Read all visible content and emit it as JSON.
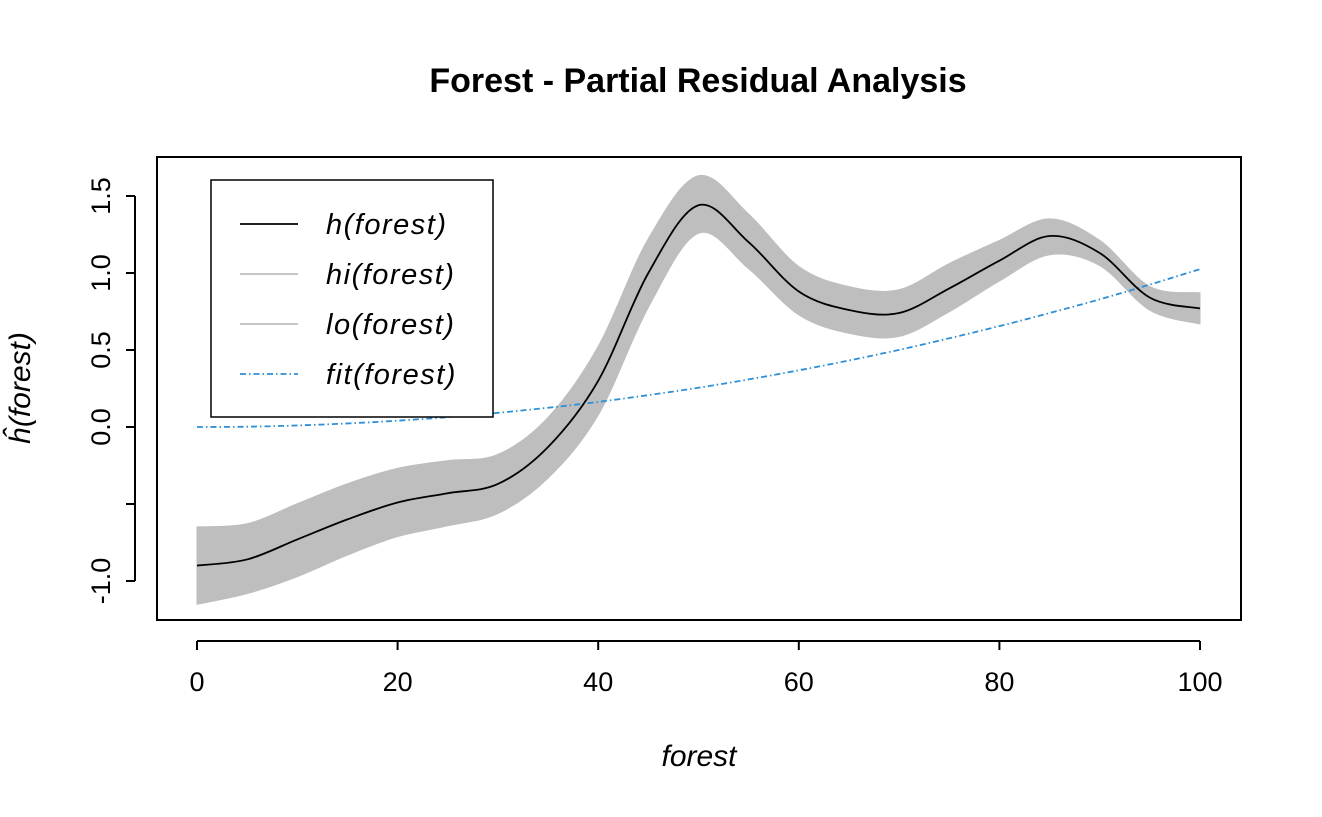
{
  "chart_data": {
    "type": "line",
    "title": "Forest - Partial Residual Analysis",
    "xlabel": "forest",
    "ylabel": "ĥ(forest)",
    "xlim": [
      0,
      100
    ],
    "ylim": [
      -1.25,
      1.75
    ],
    "x_ticks": [
      {
        "value": 0,
        "label": "0"
      },
      {
        "value": 20,
        "label": "20"
      },
      {
        "value": 40,
        "label": "40"
      },
      {
        "value": 60,
        "label": "60"
      },
      {
        "value": 80,
        "label": "80"
      },
      {
        "value": 100,
        "label": "100"
      }
    ],
    "y_ticks": [
      {
        "value": -1.0,
        "label": "-1.0"
      },
      {
        "value": -0.5,
        "label": ""
      },
      {
        "value": 0.0,
        "label": "0.0"
      },
      {
        "value": 0.5,
        "label": "0.5"
      },
      {
        "value": 1.0,
        "label": "1.0"
      },
      {
        "value": 1.5,
        "label": "1.5"
      }
    ],
    "grid": false,
    "legend_position": "top-left",
    "x": [
      0,
      5,
      10,
      15,
      20,
      25,
      30,
      35,
      40,
      45,
      50,
      55,
      60,
      65,
      70,
      75,
      80,
      85,
      90,
      95,
      100
    ],
    "series": [
      {
        "name": "h(forest)",
        "legend_main": "h",
        "color": "#000000",
        "style": "solid",
        "values": [
          -0.9,
          -0.86,
          -0.73,
          -0.6,
          -0.49,
          -0.43,
          -0.37,
          -0.13,
          0.3,
          1.0,
          1.44,
          1.2,
          0.88,
          0.76,
          0.74,
          0.9,
          1.08,
          1.24,
          1.13,
          0.84,
          0.77
        ]
      },
      {
        "name": "hi(forest)",
        "legend_main": "hi",
        "color": "#bebebe",
        "style": "band-upper",
        "values": [
          -0.65,
          -0.63,
          -0.5,
          -0.37,
          -0.27,
          -0.22,
          -0.18,
          0.06,
          0.52,
          1.22,
          1.63,
          1.38,
          1.04,
          0.91,
          0.89,
          1.06,
          1.21,
          1.35,
          1.21,
          0.91,
          0.87
        ]
      },
      {
        "name": "lo(forest)",
        "legend_main": "lo",
        "color": "#bebebe",
        "style": "band-lower",
        "values": [
          -1.15,
          -1.08,
          -0.97,
          -0.83,
          -0.71,
          -0.64,
          -0.56,
          -0.33,
          0.08,
          0.78,
          1.26,
          1.03,
          0.73,
          0.61,
          0.59,
          0.75,
          0.95,
          1.12,
          1.05,
          0.76,
          0.67
        ]
      },
      {
        "name": "fit(forest)",
        "legend_main": "fit",
        "color": "#2e8fd6",
        "style": "dotdash",
        "values": [
          0.0,
          0.002,
          0.01,
          0.023,
          0.041,
          0.064,
          0.092,
          0.125,
          0.163,
          0.207,
          0.255,
          0.309,
          0.368,
          0.432,
          0.501,
          0.576,
          0.655,
          0.74,
          0.829,
          0.925,
          1.025
        ]
      }
    ],
    "legend": [
      {
        "main": "h",
        "arg": "(forest)",
        "color": "#000000",
        "style": "solid"
      },
      {
        "main": "hi",
        "arg": "(forest)",
        "color": "#bebebe",
        "style": "solid"
      },
      {
        "main": "lo",
        "arg": "(forest)",
        "color": "#bebebe",
        "style": "solid"
      },
      {
        "main": "fit",
        "arg": "(forest)",
        "color": "#2e8fd6",
        "style": "dotdash"
      }
    ],
    "band_fill_color": "#bebebe"
  }
}
